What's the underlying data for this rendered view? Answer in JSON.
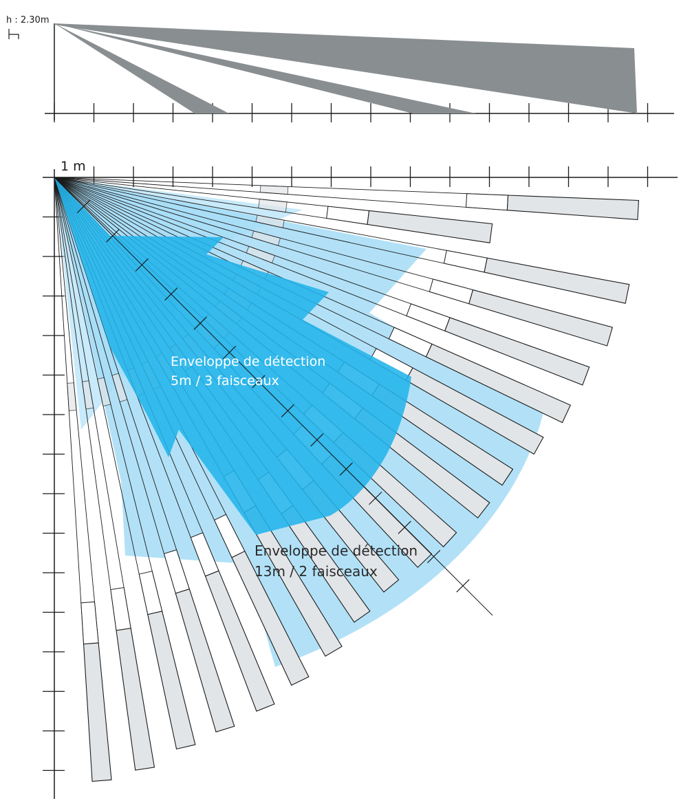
{
  "side_view": {
    "height_label": "h : 2.30m",
    "beam_color": "#898e91"
  },
  "top_view": {
    "scale_label": "1 m",
    "zone_outline_color": "#1a1a1a",
    "zone_fill_color": "#e2e5e8",
    "gap_fill_color": "#ffffff"
  },
  "envelopes": {
    "short_range": {
      "label_line1": "Enveloppe de détection",
      "label_line2": "5m / 3 faisceaux",
      "color": "#22b4ea",
      "text_color": "#ffffff"
    },
    "long_range": {
      "label_line1": "Enveloppe de détection",
      "label_line2": "13m / 2 faisceaux",
      "color": "#a4dcf6",
      "text_color": "#2a2a2a"
    }
  }
}
